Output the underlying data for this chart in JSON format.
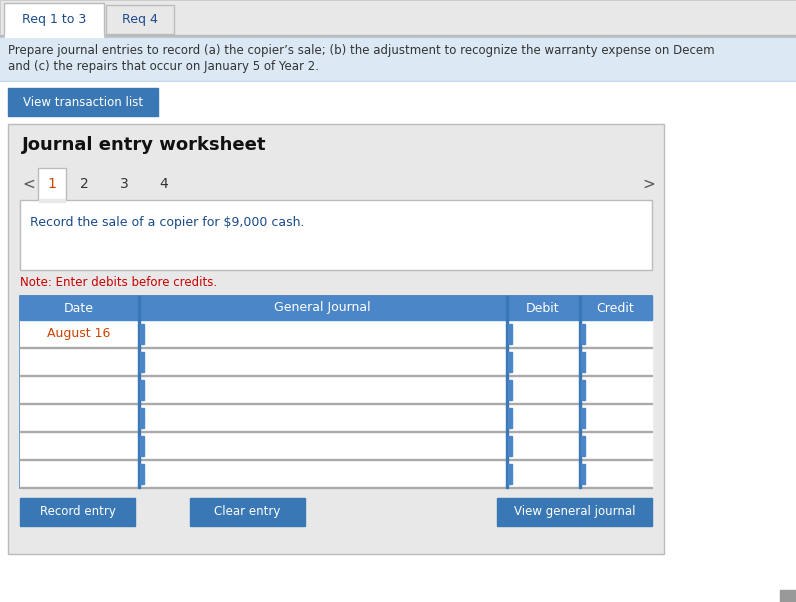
{
  "tab1_label": "Req 1 to 3",
  "tab2_label": "Req 4",
  "info_line1": "Prepare journal entries to record (a) the copier’s sale; (b) the adjustment to recognize the warranty expense on Decem",
  "info_line2": "and (c) the repairs that occur on January 5 of Year 2.",
  "btn_transaction": "View transaction list",
  "worksheet_title": "Journal entry worksheet",
  "page_numbers": [
    "1",
    "2",
    "3",
    "4"
  ],
  "instruction_text": "Record the sale of a copier for $9,000 cash.",
  "note_text": "Note: Enter debits before credits.",
  "table_headers": [
    "Date",
    "General Journal",
    "Debit",
    "Credit"
  ],
  "first_row_date": "August 16",
  "num_data_rows": 6,
  "btn_record": "Record entry",
  "btn_clear": "Clear entry",
  "btn_view": "View general journal",
  "bg_page": "#f2f2f2",
  "white": "#ffffff",
  "blue_header": "#4a86c8",
  "blue_btn": "#3a78b5",
  "light_blue_info": "#dce9f5",
  "tab1_bg": "#e8e8e8",
  "tab2_bg": "#e8e8e8",
  "panel_bg": "#e8e8e8",
  "note_color": "#cc0000",
  "instruction_color": "#1a4a8a",
  "dark_text": "#333333",
  "border_color": "#bbbbbb",
  "table_border_dark": "#3a78b5",
  "row_border": "#aaaaaa",
  "blue_tick": "#4a86c8",
  "arrow_color": "#555555",
  "scrollbar_bg": "#cccccc",
  "tab_text_color": "#1a4a8a"
}
